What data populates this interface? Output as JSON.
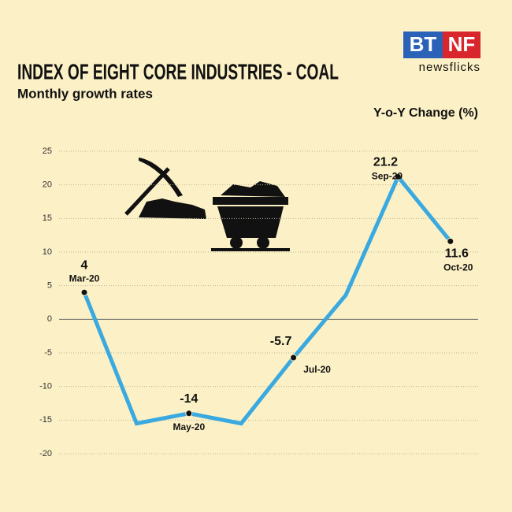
{
  "logo": {
    "left": "BT",
    "right": "NF",
    "tagline": "newsflicks"
  },
  "chart_data": {
    "type": "line",
    "title": "INDEX OF EIGHT CORE INDUSTRIES - COAL",
    "subtitle": "Monthly growth rates",
    "y_label": "Y-o-Y Change (%)",
    "categories": [
      "Mar-20",
      null,
      "May-20",
      null,
      "Jul-20",
      null,
      "Sep-20",
      "Oct-20"
    ],
    "series": [
      {
        "name": "Coal",
        "color": "#3aa9e0",
        "values": [
          4,
          -15.5,
          -14,
          -15.5,
          -5.7,
          3.6,
          21.2,
          11.6
        ],
        "value_labels": [
          "4",
          null,
          "-14",
          null,
          "-5.7",
          null,
          "21.2",
          "11.6"
        ]
      }
    ],
    "ylim": [
      -20,
      25
    ],
    "yticks": [
      -20,
      -15,
      -10,
      -5,
      0,
      5,
      10,
      15,
      20,
      25
    ],
    "grid": true
  }
}
